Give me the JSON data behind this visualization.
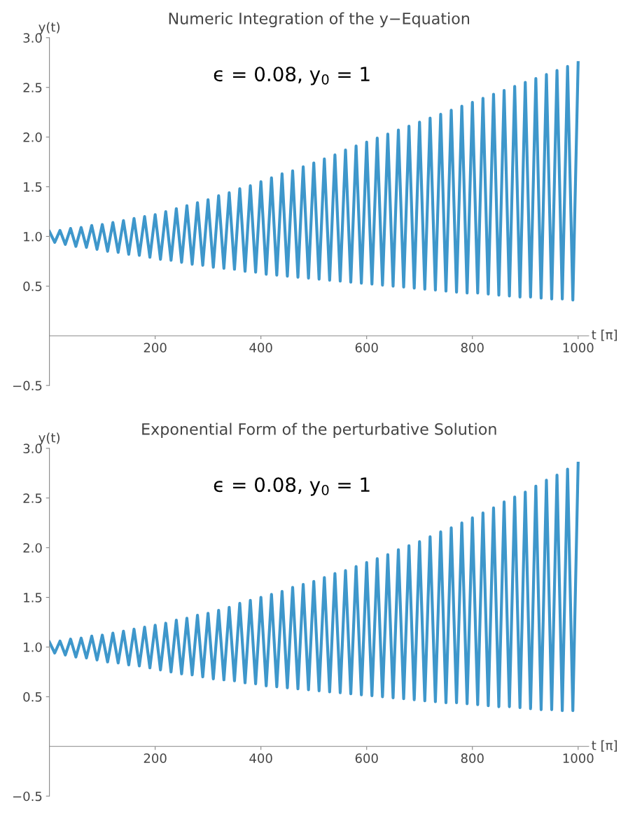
{
  "chart_data": [
    {
      "type": "line",
      "title": "Numeric Integration of the y−Equation",
      "xlabel": "t [π]",
      "ylabel": "y(t)",
      "annotations": [
        "ϵ = 0.08, y$_{0}$ = 1"
      ],
      "xlim": [
        0,
        1020
      ],
      "ylim": [
        -0.5,
        3.0
      ],
      "xticks": [
        200,
        400,
        600,
        800,
        1000
      ],
      "yticks": [
        {
          "value": -0.5,
          "label": "−0.5"
        },
        0.5,
        {
          "value": 1,
          "label": "1.0"
        },
        1.5,
        {
          "value": 2,
          "label": "2.0"
        },
        2.5,
        {
          "value": 3,
          "label": "3.0"
        }
      ],
      "grid": false,
      "legend": false,
      "marker": "none",
      "line_style": "solid",
      "x": [
        0,
        10,
        20,
        30,
        40,
        50,
        60,
        70,
        80,
        90,
        100,
        110,
        120,
        130,
        140,
        150,
        160,
        170,
        180,
        190,
        200,
        210,
        220,
        230,
        240,
        250,
        260,
        270,
        280,
        290,
        300,
        310,
        320,
        330,
        340,
        350,
        360,
        370,
        380,
        390,
        400,
        410,
        420,
        430,
        440,
        450,
        460,
        470,
        480,
        490,
        500,
        510,
        520,
        530,
        540,
        550,
        560,
        570,
        580,
        590,
        600,
        610,
        620,
        630,
        640,
        650,
        660,
        670,
        680,
        690,
        700,
        710,
        720,
        730,
        740,
        750,
        760,
        770,
        780,
        790,
        800,
        810,
        820,
        830,
        840,
        850,
        860,
        870,
        880,
        890,
        900,
        910,
        920,
        930,
        940,
        950,
        960,
        970,
        980,
        990,
        1000
      ],
      "series": [
        {
          "color": "#3e97cb",
          "values": [
            1.05,
            0.94,
            1.06,
            0.92,
            1.08,
            0.9,
            1.09,
            0.89,
            1.11,
            0.87,
            1.12,
            0.85,
            1.14,
            0.84,
            1.16,
            0.82,
            1.18,
            0.81,
            1.2,
            0.79,
            1.22,
            0.77,
            1.25,
            0.76,
            1.28,
            0.74,
            1.31,
            0.72,
            1.34,
            0.71,
            1.37,
            0.69,
            1.41,
            0.68,
            1.44,
            0.67,
            1.48,
            0.65,
            1.51,
            0.64,
            1.55,
            0.62,
            1.59,
            0.61,
            1.63,
            0.6,
            1.66,
            0.59,
            1.7,
            0.58,
            1.74,
            0.57,
            1.78,
            0.56,
            1.82,
            0.55,
            1.87,
            0.54,
            1.91,
            0.53,
            1.95,
            0.52,
            1.99,
            0.51,
            2.03,
            0.5,
            2.07,
            0.49,
            2.11,
            0.48,
            2.15,
            0.47,
            2.19,
            0.46,
            2.23,
            0.45,
            2.27,
            0.44,
            2.31,
            0.43,
            2.35,
            0.43,
            2.39,
            0.42,
            2.43,
            0.41,
            2.47,
            0.4,
            2.51,
            0.39,
            2.55,
            0.39,
            2.59,
            0.38,
            2.63,
            0.37,
            2.67,
            0.37,
            2.71,
            0.36,
            2.75
          ]
        }
      ]
    },
    {
      "type": "line",
      "title": "Exponential Form of the perturbative Solution",
      "xlabel": "t [π]",
      "ylabel": "y(t)",
      "annotations": [
        "ϵ = 0.08, y$_{0}$ = 1"
      ],
      "xlim": [
        0,
        1020
      ],
      "ylim": [
        -0.5,
        3.0
      ],
      "xticks": [
        200,
        400,
        600,
        800,
        1000
      ],
      "yticks": [
        {
          "value": -0.5,
          "label": "−0.5"
        },
        0.5,
        {
          "value": 1,
          "label": "1.0"
        },
        1.5,
        {
          "value": 2,
          "label": "2.0"
        },
        2.5,
        {
          "value": 3,
          "label": "3.0"
        }
      ],
      "grid": false,
      "legend": false,
      "marker": "none",
      "line_style": "solid",
      "x": [
        0,
        10,
        20,
        30,
        40,
        50,
        60,
        70,
        80,
        90,
        100,
        110,
        120,
        130,
        140,
        150,
        160,
        170,
        180,
        190,
        200,
        210,
        220,
        230,
        240,
        250,
        260,
        270,
        280,
        290,
        300,
        310,
        320,
        330,
        340,
        350,
        360,
        370,
        380,
        390,
        400,
        410,
        420,
        430,
        440,
        450,
        460,
        470,
        480,
        490,
        500,
        510,
        520,
        530,
        540,
        550,
        560,
        570,
        580,
        590,
        600,
        610,
        620,
        630,
        640,
        650,
        660,
        670,
        680,
        690,
        700,
        710,
        720,
        730,
        740,
        750,
        760,
        770,
        780,
        790,
        800,
        810,
        820,
        830,
        840,
        850,
        860,
        870,
        880,
        890,
        900,
        910,
        920,
        930,
        940,
        950,
        960,
        970,
        980,
        990,
        1000
      ],
      "series": [
        {
          "color": "#3e97cb",
          "values": [
            1.05,
            0.94,
            1.06,
            0.92,
            1.08,
            0.9,
            1.09,
            0.89,
            1.11,
            0.87,
            1.12,
            0.85,
            1.14,
            0.84,
            1.16,
            0.82,
            1.18,
            0.81,
            1.2,
            0.79,
            1.22,
            0.77,
            1.24,
            0.75,
            1.27,
            0.73,
            1.29,
            0.72,
            1.32,
            0.7,
            1.34,
            0.68,
            1.37,
            0.67,
            1.4,
            0.66,
            1.44,
            0.64,
            1.47,
            0.63,
            1.5,
            0.61,
            1.53,
            0.6,
            1.56,
            0.59,
            1.6,
            0.58,
            1.63,
            0.57,
            1.66,
            0.56,
            1.7,
            0.55,
            1.74,
            0.54,
            1.77,
            0.53,
            1.81,
            0.52,
            1.85,
            0.51,
            1.89,
            0.5,
            1.93,
            0.49,
            1.98,
            0.48,
            2.02,
            0.47,
            2.06,
            0.46,
            2.11,
            0.45,
            2.16,
            0.44,
            2.2,
            0.44,
            2.25,
            0.43,
            2.3,
            0.42,
            2.35,
            0.41,
            2.4,
            0.4,
            2.46,
            0.4,
            2.51,
            0.39,
            2.56,
            0.38,
            2.62,
            0.37,
            2.68,
            0.37,
            2.73,
            0.36,
            2.79,
            0.36,
            2.85
          ]
        }
      ]
    }
  ]
}
